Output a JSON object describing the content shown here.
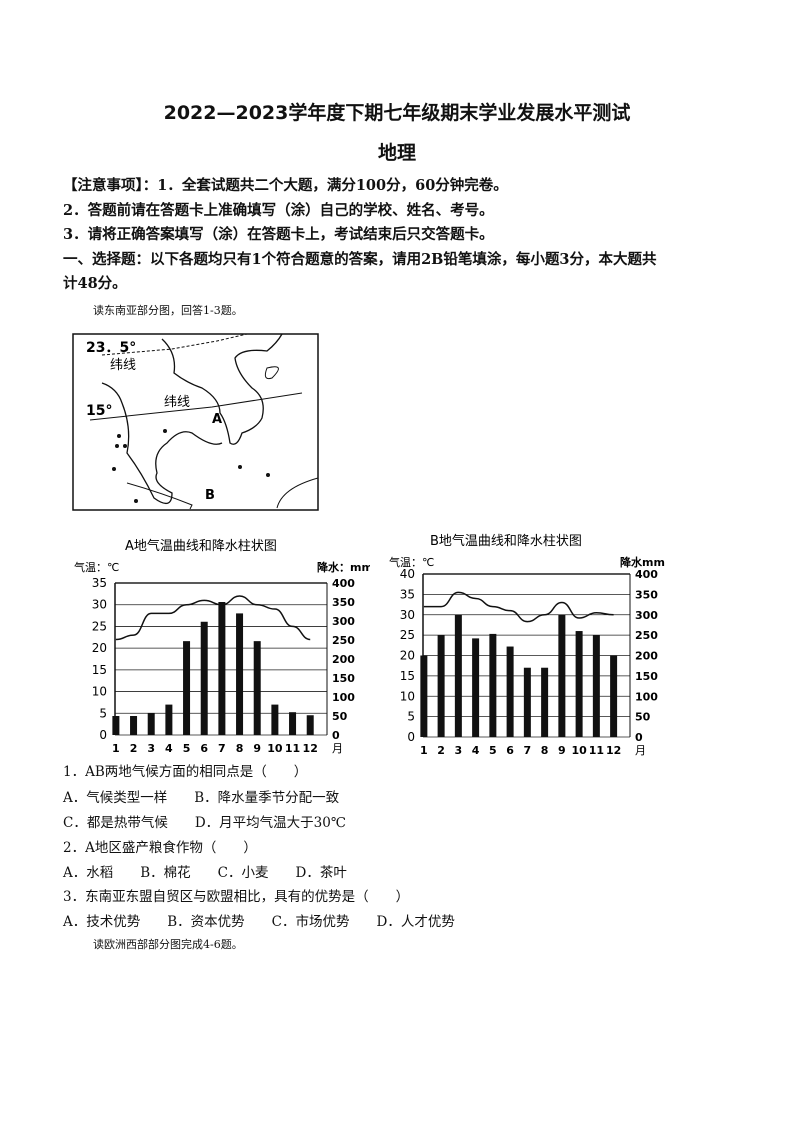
{
  "header": {
    "title": "2022—2023学年度下期七年级期末学业发展水平测试",
    "subject": "地理"
  },
  "notes": [
    "【注意事项】：1．全套试题共二个大题，满分100分，60分钟完卷。",
    "2．答题前请在答题卡上准确填写（涂）自己的学校、姓名、考号。",
    "3．请将正确答案填写（涂）在答题卡上，考试结束后只交答题卡。",
    "一、选择题：以下各题均只有1个符合题意的答案，请用2B铅笔填涂，每小题3分，本大题共",
    "计48分。"
  ],
  "map": {
    "caption": "读东南亚部分图，回答1-3题。",
    "lat1_label": "23．5°",
    "lat1_name": "纬线",
    "lat2_label": "15°",
    "lat2_name": "纬线",
    "point_a": "A",
    "point_b": "B"
  },
  "chart_data": [
    {
      "type": "bar",
      "title": "A地气温曲线和降水柱状图",
      "y_left_label": "气温：℃",
      "y_right_label": "降水：mm",
      "x_unit": "月",
      "categories": [
        "1",
        "2",
        "3",
        "4",
        "5",
        "6",
        "7",
        "8",
        "9",
        "10",
        "11",
        "12"
      ],
      "y_left_ticks": [
        "0",
        "5",
        "10",
        "15",
        "20",
        "25",
        "30",
        "35"
      ],
      "y_right_ticks": [
        "0",
        "50",
        "100",
        "150",
        "200",
        "250",
        "300",
        "350",
        "400"
      ],
      "ylim_left": [
        0,
        35
      ],
      "ylim_right": [
        0,
        400
      ],
      "grid": true,
      "series": [
        {
          "type": "bar",
          "axis": "right",
          "values": [
            50,
            50,
            58,
            80,
            247,
            298,
            350,
            320,
            247,
            80,
            60,
            52
          ]
        },
        {
          "type": "line",
          "axis": "left",
          "values": [
            22,
            23,
            28,
            28,
            30,
            31,
            30,
            32,
            30,
            29,
            25,
            22
          ]
        }
      ]
    },
    {
      "type": "bar",
      "title": "B地气温曲线和降水柱状图",
      "y_left_label": "气温：℃",
      "y_right_label": "降水mm",
      "x_unit": "月",
      "categories": [
        "1",
        "2",
        "3",
        "4",
        "5",
        "6",
        "7",
        "8",
        "9",
        "10",
        "11",
        "12"
      ],
      "y_left_ticks": [
        "0",
        "5",
        "10",
        "15",
        "20",
        "25",
        "30",
        "35",
        "40"
      ],
      "y_right_ticks": [
        "0",
        "50",
        "100",
        "150",
        "200",
        "250",
        "300",
        "350",
        "400"
      ],
      "ylim_left": [
        0,
        40
      ],
      "ylim_right": [
        0,
        400
      ],
      "grid": true,
      "series": [
        {
          "type": "bar",
          "axis": "right",
          "values": [
            200,
            250,
            300,
            242,
            253,
            222,
            170,
            170,
            300,
            260,
            250,
            200
          ]
        },
        {
          "type": "line",
          "axis": "left",
          "values": [
            32,
            32,
            35.5,
            34,
            32,
            31,
            28.3,
            30,
            33,
            29.2,
            30.5,
            30
          ]
        }
      ]
    }
  ],
  "questions": [
    "1．AB两地气候方面的相同点是（　　）",
    "A．气候类型一样　　B．降水量季节分配一致",
    "C．都是热带气候　　D．月平均气温大于30℃",
    "2．A地区盛产粮食作物（　　）",
    "A．水稻　　B．棉花　　C．小麦　　D．茶叶",
    "3．东南亚东盟自贸区与欧盟相比，具有的优势是（　　）",
    "A．技术优势　　B．资本优势　　C．市场优势　　D．人才优势"
  ],
  "next_caption": "读欧洲西部部分图完成4-6题。"
}
